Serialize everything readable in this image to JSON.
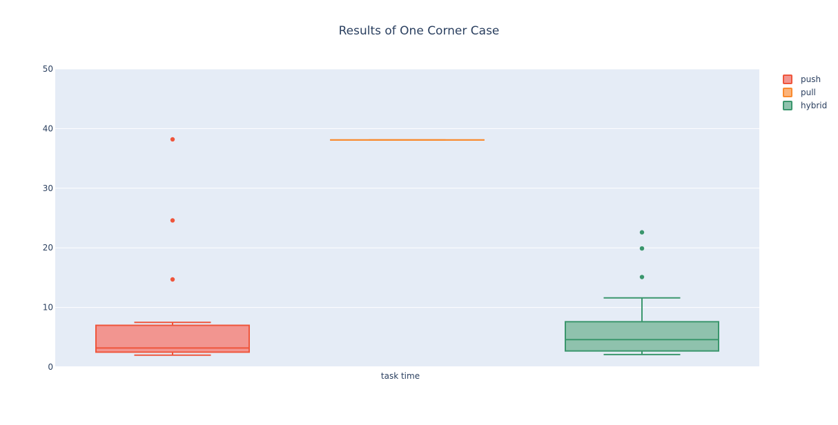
{
  "chart_data": {
    "type": "box",
    "title": "Results of One Corner Case",
    "xlabel": "",
    "ylabel": "",
    "categories": [
      "task time"
    ],
    "ylim": [
      0,
      50
    ],
    "yticks": [
      0,
      10,
      20,
      30,
      40,
      50
    ],
    "grid": true,
    "legend_position": "top-right",
    "series": [
      {
        "name": "push",
        "color": "#ef553b",
        "fill": "#f29590",
        "whisker_low": 2.0,
        "q1": 2.5,
        "median": 3.2,
        "q3": 7.0,
        "whisker_high": 7.5,
        "outliers": [
          14.7,
          24.6,
          38.2
        ]
      },
      {
        "name": "pull",
        "color": "#f98a2e",
        "fill": "#fbb37a",
        "whisker_low": 38.1,
        "q1": 38.1,
        "median": 38.1,
        "q3": 38.1,
        "whisker_high": 38.1,
        "outliers": []
      },
      {
        "name": "hybrid",
        "color": "#3a966c",
        "fill": "#8fc2ad",
        "whisker_low": 2.1,
        "q1": 2.7,
        "median": 4.6,
        "q3": 7.6,
        "whisker_high": 11.6,
        "outliers": [
          15.1,
          19.9,
          22.6
        ]
      }
    ]
  }
}
